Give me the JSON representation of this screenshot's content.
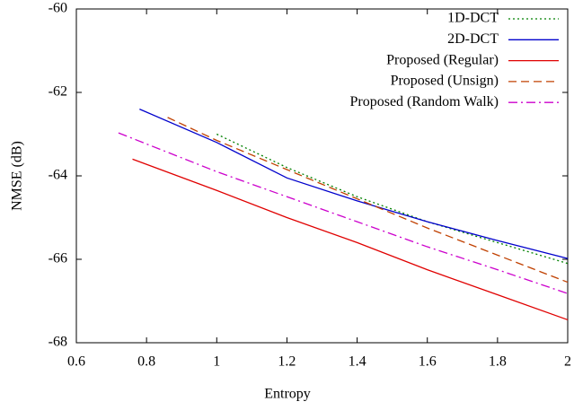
{
  "chart_data": {
    "type": "line",
    "x_label": "Entropy",
    "y_label": "NMSE (dB)",
    "xlim": [
      0.6,
      2
    ],
    "ylim": [
      -68,
      -60
    ],
    "xticks": [
      0.6,
      0.8,
      1,
      1.2,
      1.4,
      1.6,
      1.8,
      2
    ],
    "yticks": [
      -68,
      -66,
      -64,
      -62,
      -60
    ],
    "legend": "top-right",
    "series": [
      {
        "name": "1D-DCT",
        "color": "#008000",
        "style": "dotted",
        "x": [
          1.0,
          1.2,
          1.4,
          1.6,
          1.8,
          2.0
        ],
        "values": [
          -63.0,
          -63.8,
          -64.5,
          -65.1,
          -65.6,
          -66.1
        ]
      },
      {
        "name": "2D-DCT",
        "color": "#0000cc",
        "style": "solid",
        "x": [
          0.78,
          1.0,
          1.2,
          1.4,
          1.6,
          1.8,
          2.0
        ],
        "values": [
          -62.4,
          -63.2,
          -64.05,
          -64.6,
          -65.1,
          -65.55,
          -65.98
        ]
      },
      {
        "name": "Proposed (Regular)",
        "color": "#e00000",
        "style": "solid",
        "x": [
          0.76,
          1.0,
          1.2,
          1.4,
          1.6,
          1.8,
          2.0
        ],
        "values": [
          -63.6,
          -64.35,
          -65.0,
          -65.6,
          -66.25,
          -66.85,
          -67.45
        ]
      },
      {
        "name": "Proposed (Unsign)",
        "color": "#c04000",
        "style": "dashed",
        "x": [
          0.86,
          1.0,
          1.2,
          1.4,
          1.6,
          1.8,
          2.0
        ],
        "values": [
          -62.6,
          -63.15,
          -63.85,
          -64.55,
          -65.25,
          -65.9,
          -66.55
        ]
      },
      {
        "name": "Proposed (Random Walk)",
        "color": "#cc00cc",
        "style": "dashdot",
        "x": [
          0.72,
          1.0,
          1.2,
          1.4,
          1.6,
          1.8,
          2.0
        ],
        "values": [
          -62.97,
          -63.9,
          -64.5,
          -65.1,
          -65.7,
          -66.25,
          -66.82
        ]
      }
    ]
  }
}
